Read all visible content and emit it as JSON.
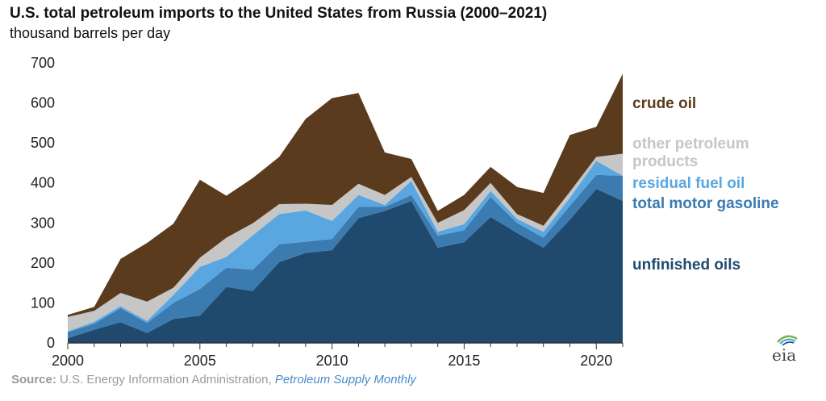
{
  "header": {
    "title": "U.S. total petroleum imports to the United States from Russia (2000–2021)",
    "subtitle": "thousand barrels per day"
  },
  "source": {
    "label": "Source:",
    "org": "U.S. Energy Information Administration,",
    "publication": "Petroleum Supply Monthly"
  },
  "logo": {
    "text": "eia"
  },
  "chart_data": {
    "type": "area",
    "stacked": true,
    "title": "U.S. total petroleum imports to the United States from Russia (2000–2021)",
    "ylabel": "thousand barrels per day",
    "xlabel": "",
    "x": [
      2000,
      2001,
      2002,
      2003,
      2004,
      2005,
      2006,
      2007,
      2008,
      2009,
      2010,
      2011,
      2012,
      2013,
      2014,
      2015,
      2016,
      2017,
      2018,
      2019,
      2020,
      2021
    ],
    "xlim": [
      2000,
      2021
    ],
    "ylim": [
      0,
      700
    ],
    "yticks": [
      "0",
      "100",
      "200",
      "300",
      "400",
      "500",
      "600",
      "700"
    ],
    "xticks": [
      {
        "value": 2000,
        "label": "2000"
      },
      {
        "value": 2005,
        "label": "2005"
      },
      {
        "value": 2010,
        "label": "2010"
      },
      {
        "value": 2015,
        "label": "2015"
      },
      {
        "value": 2020,
        "label": "2020"
      }
    ],
    "grid": false,
    "legend": "direct labels at right",
    "series": [
      {
        "name": "unfinished oils",
        "color": "#1f4a6e",
        "values": [
          12,
          33,
          52,
          25,
          60,
          68,
          140,
          130,
          202,
          225,
          232,
          312,
          330,
          355,
          238,
          252,
          315,
          275,
          238,
          308,
          385,
          355
        ]
      },
      {
        "name": "total motor gasoline",
        "color": "#3b7bb0",
        "values": [
          15,
          15,
          35,
          25,
          40,
          67,
          48,
          53,
          45,
          28,
          28,
          28,
          10,
          15,
          30,
          30,
          50,
          25,
          25,
          35,
          35,
          63
        ]
      },
      {
        "name": "residual fuel oil",
        "color": "#5aa6e1",
        "values": [
          2,
          5,
          5,
          5,
          20,
          55,
          27,
          86,
          75,
          78,
          45,
          30,
          5,
          35,
          10,
          15,
          15,
          10,
          15,
          20,
          35,
          0
        ]
      },
      {
        "name": "other petroleum products",
        "color": "#c6c6c6",
        "values": [
          36,
          27,
          33,
          48,
          18,
          23,
          48,
          30,
          25,
          17,
          40,
          28,
          25,
          10,
          22,
          35,
          20,
          12,
          15,
          15,
          10,
          55
        ]
      },
      {
        "name": "crude oil",
        "color": "#5a3b1e",
        "values": [
          5,
          10,
          85,
          147,
          160,
          195,
          105,
          113,
          118,
          212,
          267,
          227,
          106,
          45,
          30,
          38,
          40,
          68,
          82,
          142,
          75,
          200
        ]
      }
    ],
    "direct_labels": [
      {
        "text": "crude oil",
        "color": "#5a3b1e"
      },
      {
        "text": "other petroleum",
        "color": "#c6c6c6"
      },
      {
        "text": "products",
        "color": "#c6c6c6"
      },
      {
        "text": "residual fuel oil",
        "color": "#5aa6e1"
      },
      {
        "text": "total motor gasoline",
        "color": "#3b7bb0"
      },
      {
        "text": "unfinished oils",
        "color": "#1f4a6e"
      }
    ]
  }
}
